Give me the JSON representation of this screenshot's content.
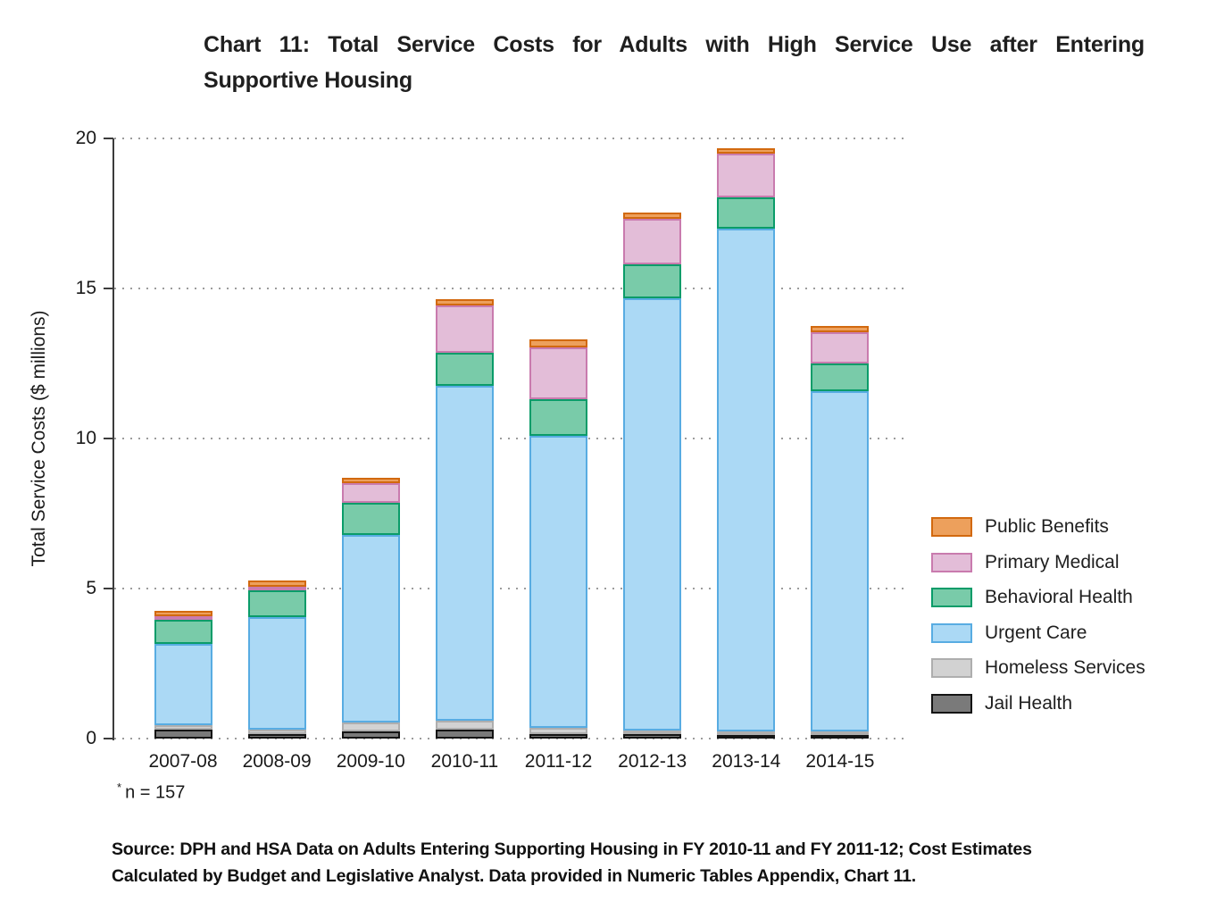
{
  "title": {
    "full": "Chart 11: Total Service Costs for Adults with High Service Use after Entering Supportive Housing",
    "line1": "Chart 11: Total Service Costs for Adults with High Service Use after Entering",
    "line2": "Supportive Housing"
  },
  "note": {
    "asterisk": "*",
    "text": "n = 157"
  },
  "source": {
    "line1": "Source: DPH and HSA Data on Adults Entering Supporting Housing in FY 2010-11 and FY 2011-12; Cost Estimates",
    "line2": "Calculated by Budget and Legislative Analyst. Data provided in Numeric Tables Appendix, Chart 11."
  },
  "chart_data": {
    "type": "bar",
    "stacked": true,
    "title": "Chart 11: Total Service Costs for Adults with High Service Use after Entering Supportive Housing",
    "xlabel": "",
    "ylabel": "Total Service Costs ($ millions)",
    "ylim": [
      0,
      20
    ],
    "yticks": [
      0,
      5,
      10,
      15,
      20
    ],
    "grid": "dotted-horizontal",
    "legend_position": "right",
    "legend_order_top_to_bottom": [
      "Public Benefits",
      "Primary Medical",
      "Behavioral Health",
      "Urgent Care",
      "Homeless Services",
      "Jail Health"
    ],
    "categories": [
      "2007-08",
      "2008-09",
      "2009-10",
      "2010-11",
      "2011-12",
      "2012-13",
      "2013-14",
      "2014-15"
    ],
    "series": [
      {
        "name": "Jail Health",
        "fill": "#7a7a7a",
        "border": "#141414",
        "values": [
          0.3,
          0.15,
          0.25,
          0.3,
          0.15,
          0.15,
          0.1,
          0.05
        ]
      },
      {
        "name": "Homeless Services",
        "fill": "#d2d2d2",
        "border": "#aeaeae",
        "values": [
          0.15,
          0.15,
          0.3,
          0.3,
          0.2,
          0.05,
          0.05,
          0.05
        ]
      },
      {
        "name": "Urgent Care",
        "fill": "#abd9f5",
        "border": "#58ace2",
        "values": [
          2.7,
          3.75,
          6.25,
          11.15,
          9.75,
          14.4,
          16.75,
          11.35
        ]
      },
      {
        "name": "Behavioral Health",
        "fill": "#79cba9",
        "border": "#0a9c69",
        "values": [
          0.8,
          0.9,
          1.05,
          1.1,
          1.2,
          1.15,
          1.05,
          0.9
        ]
      },
      {
        "name": "Primary Medical",
        "fill": "#e3bdd8",
        "border": "#c97bae",
        "values": [
          0.05,
          0.05,
          0.65,
          1.6,
          1.75,
          1.5,
          1.45,
          1.05
        ]
      },
      {
        "name": "Public Benefits",
        "fill": "#eda05c",
        "border": "#d2690f",
        "values": [
          0.2,
          0.2,
          0.2,
          0.2,
          0.25,
          0.2,
          0.2,
          0.2
        ]
      }
    ],
    "totals": [
      4.2,
      5.2,
      8.7,
      14.65,
      13.3,
      17.45,
      19.6,
      13.6
    ]
  },
  "colors": {
    "axis": "#3c3c3c",
    "gridline": "#9c9c9c",
    "text": "#1a1a1a",
    "background": "#ffffff"
  }
}
